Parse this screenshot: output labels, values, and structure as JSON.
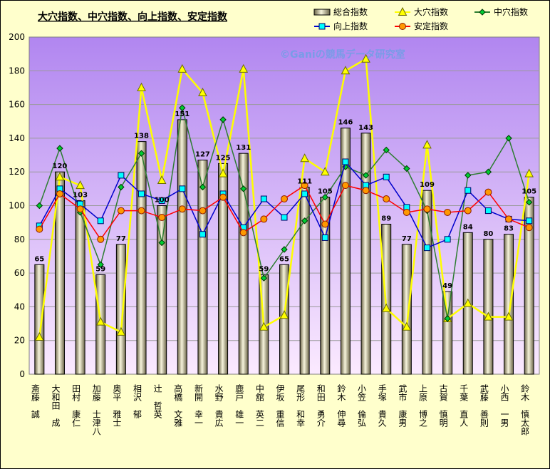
{
  "chart_data": {
    "type": "bar",
    "title": "大穴指数、中穴指数、向上指数、安定指数",
    "watermark": "©Ganiの競馬データ研究室",
    "ylim": [
      0,
      200
    ],
    "yticks": [
      0,
      20,
      40,
      60,
      80,
      100,
      120,
      140,
      160,
      180,
      200
    ],
    "grid": true,
    "legend_position": "top-right",
    "categories": [
      "斎藤　誠",
      "大和田　成",
      "田村　康仁",
      "加藤　士津八",
      "奥平　雅士",
      "相沢　郁",
      "辻　哲英",
      "高橋　文雅",
      "新開　幸一",
      "水野　貴広",
      "鹿戸　雄一",
      "中舘　英二",
      "伊坂　重信",
      "尾形　和幸",
      "和田　勇介",
      "鈴木　伸尋",
      "小笠　倫弘",
      "手塚　貴久",
      "武市　康男",
      "上原　博之",
      "古賀　慎明",
      "千葉　直人",
      "武藤　善則",
      "小西　一男",
      "鈴木　慎太郎"
    ],
    "series": [
      {
        "name": "総合指数",
        "kind": "bar",
        "color": "#d8d4b0",
        "values": [
          65,
          120,
          103,
          59,
          77,
          138,
          100,
          151,
          127,
          125,
          131,
          59,
          65,
          111,
          105,
          146,
          143,
          89,
          77,
          109,
          49,
          84,
          80,
          83,
          105
        ]
      },
      {
        "name": "大穴指数",
        "kind": "line",
        "color": "#ffff00",
        "marker": "triangle",
        "values": [
          22,
          117,
          112,
          31,
          25,
          170,
          115,
          181,
          167,
          119,
          181,
          28,
          35,
          128,
          120,
          180,
          187,
          39,
          28,
          136,
          33,
          42,
          34,
          34,
          119
        ]
      },
      {
        "name": "中穴指数",
        "kind": "line",
        "color": "#2e7d32",
        "marker": "diamond",
        "values": [
          100,
          134,
          96,
          65,
          111,
          131,
          78,
          158,
          111,
          151,
          110,
          57,
          74,
          91,
          105,
          123,
          118,
          133,
          122,
          97,
          33,
          118,
          120,
          140,
          102
        ]
      },
      {
        "name": "向上指数",
        "kind": "line",
        "color": "#0000cc",
        "marker": "square",
        "values": [
          88,
          110,
          101,
          91,
          118,
          107,
          103,
          110,
          83,
          107,
          87,
          104,
          93,
          107,
          81,
          126,
          112,
          117,
          99,
          75,
          80,
          109,
          97,
          92,
          91
        ]
      },
      {
        "name": "安定指数",
        "kind": "line",
        "color": "#ff0000",
        "marker": "circle",
        "values": [
          86,
          107,
          98,
          80,
          97,
          97,
          93,
          98,
          97,
          105,
          84,
          92,
          104,
          112,
          89,
          112,
          109,
          104,
          96,
          98,
          96,
          97,
          108,
          92,
          87
        ]
      }
    ]
  }
}
